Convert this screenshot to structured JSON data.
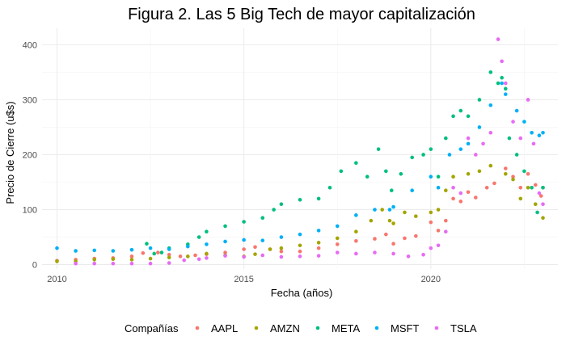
{
  "chart_data": {
    "type": "scatter",
    "title": "Figura 2. Las 5 Big Tech de mayor capitalización",
    "xlabel": "Fecha (años)",
    "ylabel": "Precio de Cierre (u$s)",
    "xlim": [
      2009.6,
      2023.4
    ],
    "ylim": [
      -8,
      430
    ],
    "x_ticks": [
      2010,
      2015,
      2020
    ],
    "y_ticks": [
      0,
      100,
      200,
      300,
      400
    ],
    "grid": true,
    "legend_position": "bottom",
    "legend_title": "Compañías",
    "series": [
      {
        "name": "AAPL",
        "color": "#F8766D",
        "points": [
          [
            2010.0,
            7
          ],
          [
            2010.5,
            9
          ],
          [
            2011.0,
            11
          ],
          [
            2011.5,
            12
          ],
          [
            2012.0,
            15
          ],
          [
            2012.3,
            21
          ],
          [
            2012.7,
            22
          ],
          [
            2013.0,
            18
          ],
          [
            2013.3,
            15
          ],
          [
            2013.7,
            17
          ],
          [
            2014.0,
            19
          ],
          [
            2014.5,
            22
          ],
          [
            2015.0,
            28
          ],
          [
            2015.3,
            32
          ],
          [
            2015.7,
            28
          ],
          [
            2016.0,
            24
          ],
          [
            2016.5,
            24
          ],
          [
            2017.0,
            30
          ],
          [
            2017.5,
            37
          ],
          [
            2018.0,
            43
          ],
          [
            2018.5,
            47
          ],
          [
            2018.8,
            55
          ],
          [
            2019.0,
            38
          ],
          [
            2019.3,
            48
          ],
          [
            2019.6,
            52
          ],
          [
            2020.0,
            77
          ],
          [
            2020.2,
            62
          ],
          [
            2020.4,
            80
          ],
          [
            2020.6,
            120
          ],
          [
            2020.8,
            115
          ],
          [
            2021.0,
            132
          ],
          [
            2021.2,
            122
          ],
          [
            2021.5,
            140
          ],
          [
            2021.7,
            148
          ],
          [
            2022.0,
            175
          ],
          [
            2022.2,
            160
          ],
          [
            2022.4,
            140
          ],
          [
            2022.6,
            165
          ],
          [
            2022.8,
            145
          ],
          [
            2022.95,
            125
          ],
          [
            2023.0,
            140
          ]
        ]
      },
      {
        "name": "AMZN",
        "color": "#A3A500",
        "points": [
          [
            2010.0,
            6
          ],
          [
            2010.5,
            6
          ],
          [
            2011.0,
            9
          ],
          [
            2011.5,
            10
          ],
          [
            2012.0,
            9
          ],
          [
            2012.5,
            11
          ],
          [
            2013.0,
            13
          ],
          [
            2013.5,
            15
          ],
          [
            2014.0,
            20
          ],
          [
            2014.5,
            17
          ],
          [
            2015.0,
            15
          ],
          [
            2015.3,
            19
          ],
          [
            2015.7,
            28
          ],
          [
            2016.0,
            30
          ],
          [
            2016.5,
            35
          ],
          [
            2017.0,
            40
          ],
          [
            2017.5,
            48
          ],
          [
            2018.0,
            60
          ],
          [
            2018.4,
            80
          ],
          [
            2018.7,
            100
          ],
          [
            2018.9,
            80
          ],
          [
            2019.0,
            75
          ],
          [
            2019.3,
            95
          ],
          [
            2019.6,
            88
          ],
          [
            2020.0,
            95
          ],
          [
            2020.2,
            100
          ],
          [
            2020.4,
            135
          ],
          [
            2020.6,
            160
          ],
          [
            2021.0,
            165
          ],
          [
            2021.3,
            170
          ],
          [
            2021.6,
            180
          ],
          [
            2022.0,
            165
          ],
          [
            2022.2,
            155
          ],
          [
            2022.4,
            120
          ],
          [
            2022.6,
            140
          ],
          [
            2022.8,
            110
          ],
          [
            2023.0,
            85
          ]
        ]
      },
      {
        "name": "META",
        "color": "#00BF7D",
        "points": [
          [
            2012.4,
            38
          ],
          [
            2012.6,
            20
          ],
          [
            2012.8,
            22
          ],
          [
            2013.0,
            30
          ],
          [
            2013.5,
            37
          ],
          [
            2013.8,
            50
          ],
          [
            2014.0,
            60
          ],
          [
            2014.5,
            70
          ],
          [
            2015.0,
            78
          ],
          [
            2015.5,
            85
          ],
          [
            2015.8,
            100
          ],
          [
            2016.0,
            110
          ],
          [
            2016.5,
            118
          ],
          [
            2017.0,
            120
          ],
          [
            2017.3,
            140
          ],
          [
            2017.6,
            170
          ],
          [
            2018.0,
            185
          ],
          [
            2018.3,
            160
          ],
          [
            2018.6,
            210
          ],
          [
            2018.8,
            170
          ],
          [
            2018.95,
            135
          ],
          [
            2019.2,
            165
          ],
          [
            2019.5,
            195
          ],
          [
            2019.8,
            200
          ],
          [
            2020.0,
            210
          ],
          [
            2020.2,
            160
          ],
          [
            2020.4,
            230
          ],
          [
            2020.6,
            270
          ],
          [
            2020.8,
            280
          ],
          [
            2021.0,
            270
          ],
          [
            2021.3,
            300
          ],
          [
            2021.6,
            350
          ],
          [
            2021.8,
            330
          ],
          [
            2021.9,
            340
          ],
          [
            2022.0,
            320
          ],
          [
            2022.1,
            230
          ],
          [
            2022.3,
            200
          ],
          [
            2022.5,
            170
          ],
          [
            2022.7,
            140
          ],
          [
            2022.85,
            95
          ],
          [
            2023.0,
            140
          ]
        ]
      },
      {
        "name": "MSFT",
        "color": "#00B0F6",
        "points": [
          [
            2010.0,
            30
          ],
          [
            2010.5,
            25
          ],
          [
            2011.0,
            26
          ],
          [
            2011.5,
            25
          ],
          [
            2012.0,
            27
          ],
          [
            2012.5,
            30
          ],
          [
            2013.0,
            28
          ],
          [
            2013.5,
            33
          ],
          [
            2014.0,
            37
          ],
          [
            2014.5,
            42
          ],
          [
            2015.0,
            45
          ],
          [
            2015.5,
            44
          ],
          [
            2016.0,
            50
          ],
          [
            2016.5,
            55
          ],
          [
            2017.0,
            62
          ],
          [
            2017.5,
            70
          ],
          [
            2018.0,
            90
          ],
          [
            2018.5,
            100
          ],
          [
            2018.9,
            100
          ],
          [
            2019.0,
            105
          ],
          [
            2019.5,
            135
          ],
          [
            2020.0,
            160
          ],
          [
            2020.2,
            140
          ],
          [
            2020.5,
            200
          ],
          [
            2020.8,
            210
          ],
          [
            2021.0,
            220
          ],
          [
            2021.3,
            250
          ],
          [
            2021.6,
            290
          ],
          [
            2021.9,
            330
          ],
          [
            2022.0,
            310
          ],
          [
            2022.3,
            280
          ],
          [
            2022.5,
            260
          ],
          [
            2022.7,
            240
          ],
          [
            2022.9,
            235
          ],
          [
            2023.0,
            240
          ]
        ]
      },
      {
        "name": "TSLA",
        "color": "#E76BF3",
        "points": [
          [
            2010.5,
            2
          ],
          [
            2011.0,
            2
          ],
          [
            2011.5,
            2
          ],
          [
            2012.0,
            2
          ],
          [
            2012.5,
            2
          ],
          [
            2013.0,
            3
          ],
          [
            2013.4,
            8
          ],
          [
            2013.8,
            10
          ],
          [
            2014.0,
            12
          ],
          [
            2014.5,
            16
          ],
          [
            2015.0,
            14
          ],
          [
            2015.5,
            17
          ],
          [
            2016.0,
            14
          ],
          [
            2016.5,
            15
          ],
          [
            2017.0,
            16
          ],
          [
            2017.5,
            22
          ],
          [
            2018.0,
            20
          ],
          [
            2018.5,
            22
          ],
          [
            2019.0,
            20
          ],
          [
            2019.4,
            15
          ],
          [
            2019.8,
            18
          ],
          [
            2020.0,
            30
          ],
          [
            2020.2,
            35
          ],
          [
            2020.4,
            60
          ],
          [
            2020.6,
            140
          ],
          [
            2020.8,
            130
          ],
          [
            2021.0,
            230
          ],
          [
            2021.2,
            200
          ],
          [
            2021.4,
            220
          ],
          [
            2021.6,
            240
          ],
          [
            2021.8,
            410
          ],
          [
            2021.9,
            370
          ],
          [
            2022.0,
            330
          ],
          [
            2022.2,
            260
          ],
          [
            2022.4,
            230
          ],
          [
            2022.6,
            300
          ],
          [
            2022.75,
            220
          ],
          [
            2022.9,
            130
          ],
          [
            2023.0,
            110
          ]
        ]
      }
    ]
  }
}
